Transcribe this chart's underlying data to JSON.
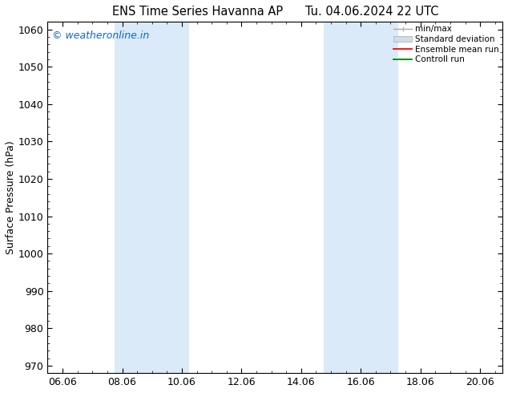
{
  "title_left": "ENS Time Series Havanna AP",
  "title_right": "Tu. 04.06.2024 22 UTC",
  "ylabel": "Surface Pressure (hPa)",
  "ylim": [
    968,
    1062
  ],
  "yticks": [
    970,
    980,
    990,
    1000,
    1010,
    1020,
    1030,
    1040,
    1050,
    1060
  ],
  "x_start": "2024-06-05 12:00",
  "x_end": "2024-06-20 12:00",
  "x_tick_labels": [
    "06.06",
    "08.06",
    "10.06",
    "12.06",
    "14.06",
    "16.06",
    "18.06",
    "20.06"
  ],
  "x_tick_values": [
    6,
    8,
    10,
    12,
    14,
    16,
    18,
    20
  ],
  "xlim": [
    5.5,
    20.75
  ],
  "shaded_bands": [
    {
      "x_start": 7.75,
      "x_end": 10.25
    },
    {
      "x_start": 14.75,
      "x_end": 17.25
    }
  ],
  "shade_color": "#daeaf8",
  "watermark_text": "© weatheronline.in",
  "watermark_color": "#1565C0",
  "legend_labels": [
    "min/max",
    "Standard deviation",
    "Ensemble mean run",
    "Controll run"
  ],
  "legend_line_colors": [
    "#aaaaaa",
    "#cccccc",
    "#ff0000",
    "#008000"
  ],
  "background_color": "#ffffff",
  "title_fontsize": 10.5,
  "axis_label_fontsize": 9,
  "tick_fontsize": 9,
  "watermark_fontsize": 9
}
